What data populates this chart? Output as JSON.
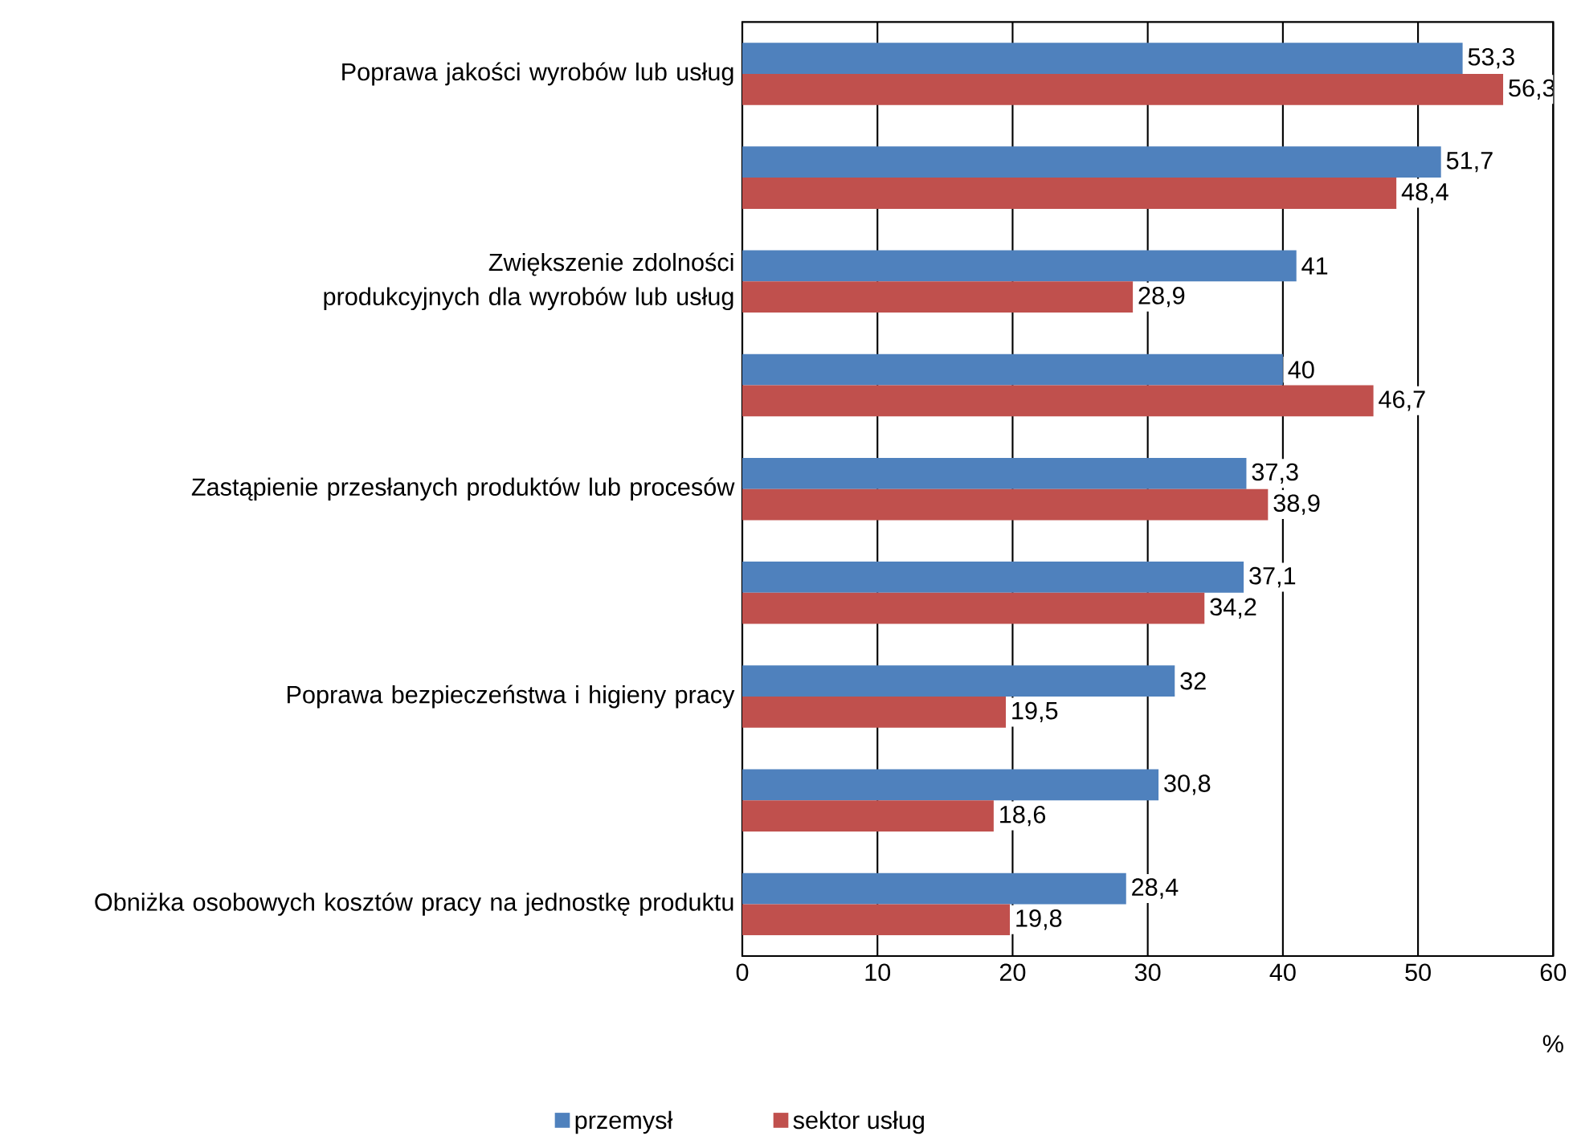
{
  "chart_data": {
    "type": "bar",
    "orientation": "horizontal",
    "categories": [
      "Poprawa jakości wyrobów lub usług",
      null,
      "Zwiększenie zdolności produkcyjnych dla wyrobów lub usług",
      null,
      "Zastąpienie przesłanych produktów lub procesów",
      null,
      "Poprawa bezpieczeństwa i higieny pracy",
      null,
      "Obniżka osobowych kosztów pracy na jednostkę produktu"
    ],
    "series": [
      {
        "name": "przemysł",
        "color": "#4f81bd",
        "values": [
          53.3,
          51.7,
          41,
          40,
          37.3,
          37.1,
          32,
          30.8,
          28.4
        ],
        "value_labels": [
          "53,3",
          "51,7",
          "41",
          "40",
          "37,3",
          "37,1",
          "32",
          "30,8",
          "28,4"
        ]
      },
      {
        "name": "sektor usług",
        "color": "#c0504d",
        "values": [
          56.3,
          48.4,
          28.9,
          46.7,
          38.9,
          34.2,
          19.5,
          18.6,
          19.8
        ],
        "value_labels": [
          "56,3",
          "48,4",
          "28,9",
          "46,7",
          "38,9",
          "34,2",
          "19,5",
          "18,6",
          "19,8"
        ]
      }
    ],
    "xlabel": "%",
    "xlim": [
      0,
      60
    ],
    "xticks": [
      0,
      10,
      20,
      30,
      40,
      50,
      60
    ],
    "grid": "x",
    "legend": "bottom"
  }
}
